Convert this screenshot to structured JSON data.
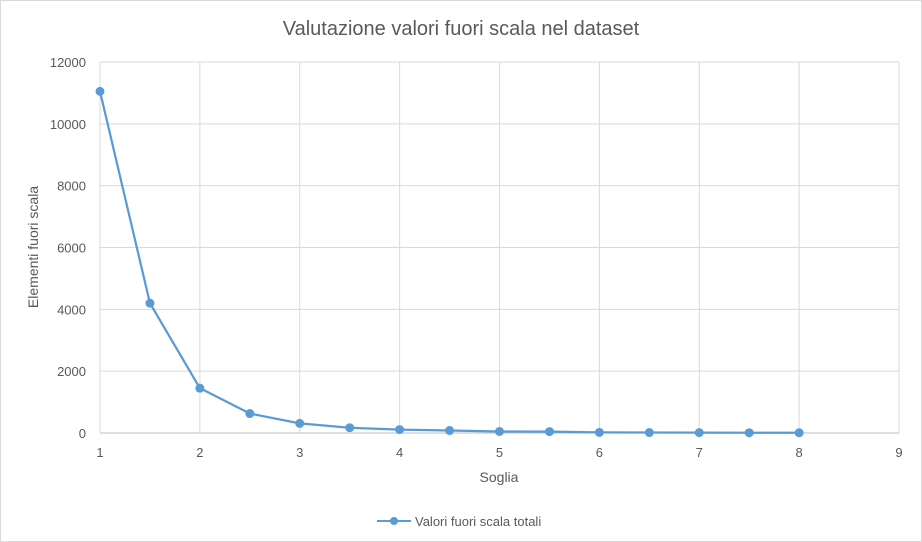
{
  "chart_data": {
    "type": "scatter",
    "title": "Valutazione valori fuori scala nel dataset",
    "xlabel": "Soglia",
    "ylabel": "Elementi fuori scala",
    "xlim": [
      1,
      9
    ],
    "ylim": [
      0,
      12000
    ],
    "x_ticks": [
      "1",
      "2",
      "3",
      "4",
      "5",
      "6",
      "7",
      "8",
      "9"
    ],
    "y_ticks": [
      "0",
      "2000",
      "4000",
      "6000",
      "8000",
      "10000",
      "12000"
    ],
    "grid": true,
    "legend_position": "bottom",
    "series": [
      {
        "name": "Valori fuori scala totali",
        "color": "#5b9bd5",
        "x": [
          1,
          1.5,
          2,
          2.5,
          3,
          3.5,
          4,
          4.5,
          5,
          5.5,
          6,
          6.5,
          7,
          7.5,
          8
        ],
        "y": [
          11050,
          4200,
          1450,
          630,
          310,
          170,
          110,
          80,
          50,
          45,
          20,
          15,
          12,
          10,
          8
        ]
      }
    ]
  }
}
